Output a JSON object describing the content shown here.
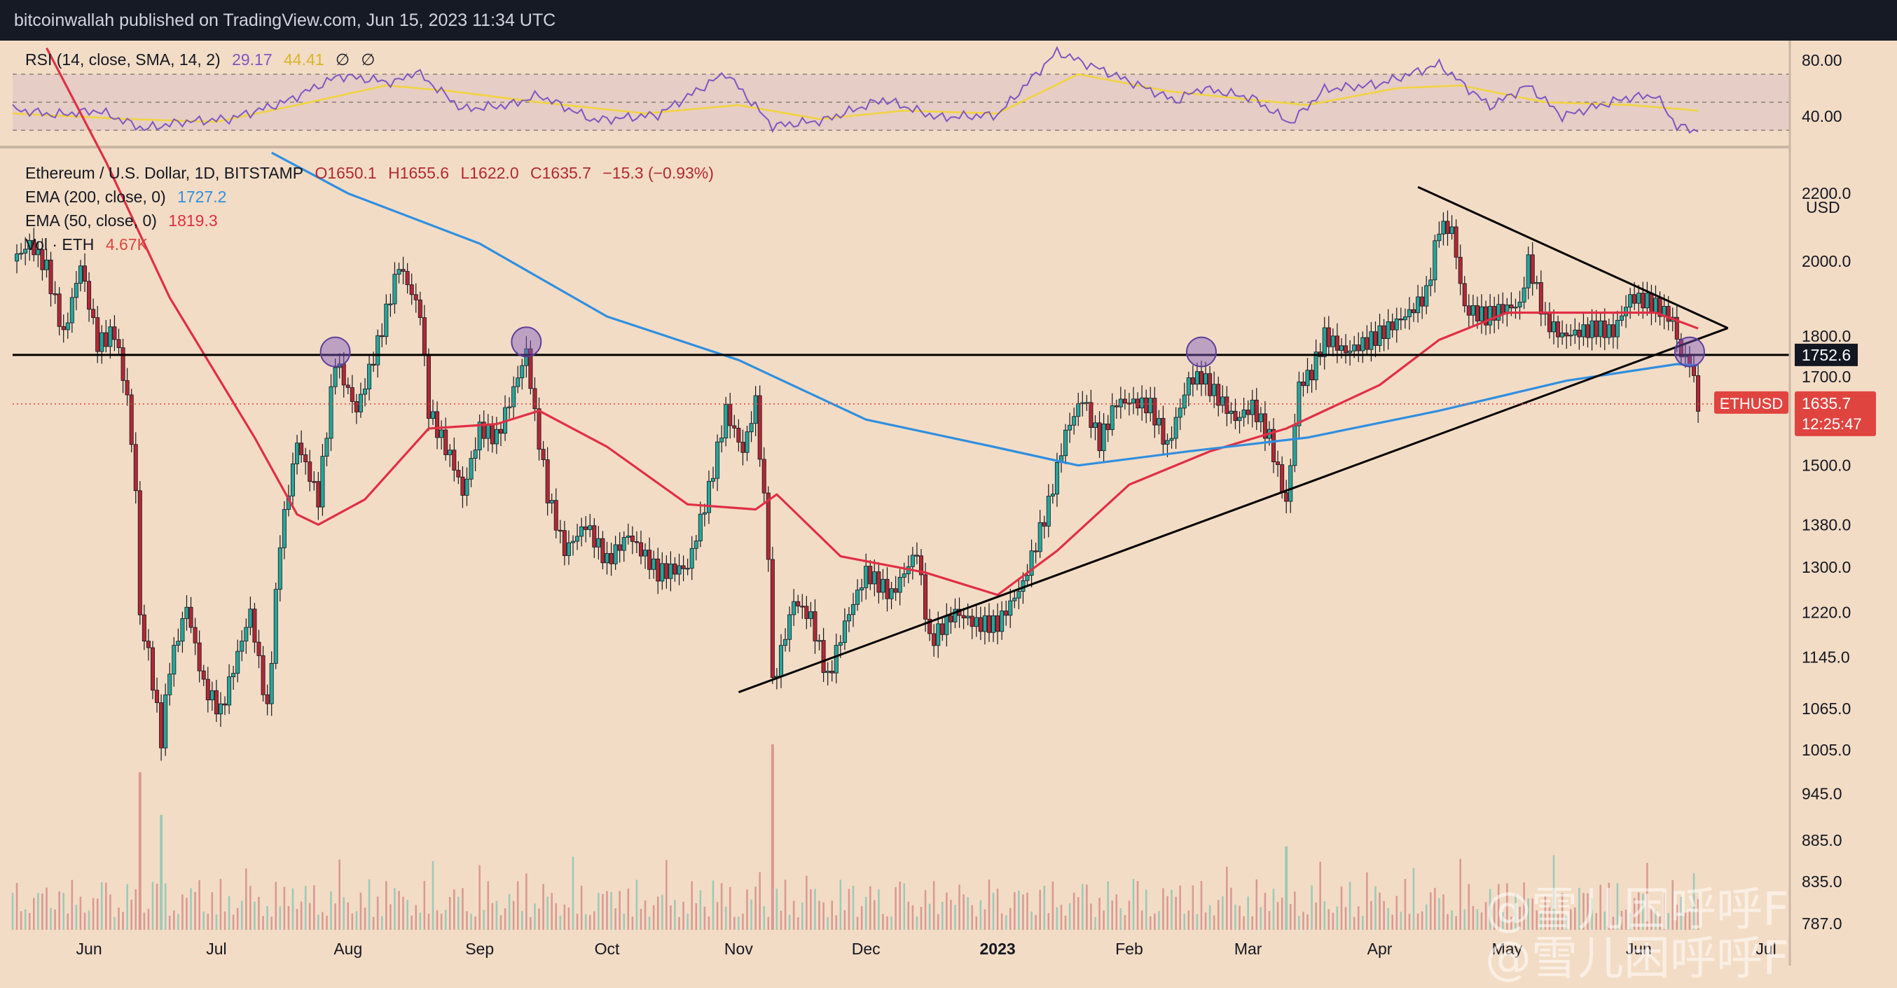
{
  "header": {
    "publisher": "bitcoinwallah published on TradingView.com, Jun 15, 2023 11:34 UTC"
  },
  "rsi_legend": {
    "name": "RSI (14, close, SMA, 14, 2)",
    "rsi_value": "29.17",
    "sma_value": "44.41",
    "icons": [
      "∅",
      "∅"
    ]
  },
  "main_legend": {
    "symbol": "Ethereum / U.S. Dollar, 1D, BITSTAMP",
    "open": "O1650.1",
    "high": "H1655.6",
    "low": "L1622.0",
    "close": "C1635.7",
    "change": "−15.3 (−0.93%)",
    "ema200_label": "EMA (200, close, 0)",
    "ema200_value": "1727.2",
    "ema50_label": "EMA (50, close, 0)",
    "ema50_value": "1819.3",
    "vol_label": "Vol · ETH",
    "vol_value": "4.67K"
  },
  "watermark": {
    "line1": "@雪儿困呼呼F",
    "line2": "@雪儿困呼呼F"
  },
  "colors": {
    "background": "#f3dcc5",
    "up": "#26a69a",
    "down": "#b22833",
    "ema200": "#2f8fe0",
    "ema50": "#e02f45",
    "rsi_line": "#7e57c2",
    "rsi_sma": "#f2d33d",
    "price_tag": "#e0443f"
  },
  "chart_data": {
    "type": "candlestick",
    "symbol": "ETHUSD",
    "price_axis": {
      "unit_label": "USD",
      "scale": "log",
      "range": [
        780,
        2330
      ],
      "ticks": [
        2200.0,
        2000.0,
        1800.0,
        1700.0,
        1500.0,
        1380.0,
        1300.0,
        1220.0,
        1145.0,
        1065.0,
        1005.0,
        945.0,
        885.0,
        835.0,
        787.0
      ],
      "tick_labels": [
        "2200.0",
        "2000.0",
        "1800.0",
        "1700.0",
        "1500.0",
        "1380.0",
        "1300.0",
        "1220.0",
        "1145.0",
        "1065.0",
        "1005.0",
        "945.0",
        "885.0",
        "835.0",
        "787.0"
      ]
    },
    "time_axis": {
      "range": [
        "2022-05-14",
        "2023-06-30"
      ],
      "ticks": [
        {
          "date": "2022-06-01",
          "label": "Jun",
          "bold": false
        },
        {
          "date": "2022-07-01",
          "label": "Jul",
          "bold": false
        },
        {
          "date": "2022-08-01",
          "label": "Aug",
          "bold": false
        },
        {
          "date": "2022-09-01",
          "label": "Sep",
          "bold": false
        },
        {
          "date": "2022-10-01",
          "label": "Oct",
          "bold": false
        },
        {
          "date": "2022-11-01",
          "label": "Nov",
          "bold": false
        },
        {
          "date": "2022-12-01",
          "label": "Dec",
          "bold": false
        },
        {
          "date": "2023-01-01",
          "label": "2023",
          "bold": true
        },
        {
          "date": "2023-02-01",
          "label": "Feb",
          "bold": false
        },
        {
          "date": "2023-03-01",
          "label": "Mar",
          "bold": false
        },
        {
          "date": "2023-04-01",
          "label": "Apr",
          "bold": false
        },
        {
          "date": "2023-05-01",
          "label": "May",
          "bold": false
        },
        {
          "date": "2023-06-01",
          "label": "Jun",
          "bold": false
        },
        {
          "date": "2023-07-01",
          "label": "Jul",
          "bold": false
        }
      ]
    },
    "close_path": [
      [
        "2022-05-14",
        2000
      ],
      [
        "2022-05-18",
        2050
      ],
      [
        "2022-05-22",
        1980
      ],
      [
        "2022-05-26",
        1800
      ],
      [
        "2022-05-30",
        1990
      ],
      [
        "2022-06-03",
        1780
      ],
      [
        "2022-06-07",
        1810
      ],
      [
        "2022-06-10",
        1650
      ],
      [
        "2022-06-12",
        1450
      ],
      [
        "2022-06-13",
        1210
      ],
      [
        "2022-06-15",
        1150
      ],
      [
        "2022-06-18",
        1020
      ],
      [
        "2022-06-20",
        1130
      ],
      [
        "2022-06-24",
        1230
      ],
      [
        "2022-06-28",
        1100
      ],
      [
        "2022-07-02",
        1060
      ],
      [
        "2022-07-06",
        1150
      ],
      [
        "2022-07-09",
        1220
      ],
      [
        "2022-07-13",
        1060
      ],
      [
        "2022-07-16",
        1350
      ],
      [
        "2022-07-20",
        1550
      ],
      [
        "2022-07-25",
        1430
      ],
      [
        "2022-07-29",
        1740
      ],
      [
        "2022-08-03",
        1620
      ],
      [
        "2022-08-08",
        1780
      ],
      [
        "2022-08-13",
        1990
      ],
      [
        "2022-08-18",
        1860
      ],
      [
        "2022-08-20",
        1620
      ],
      [
        "2022-08-26",
        1500
      ],
      [
        "2022-08-28",
        1440
      ],
      [
        "2022-09-01",
        1580
      ],
      [
        "2022-09-05",
        1560
      ],
      [
        "2022-09-08",
        1640
      ],
      [
        "2022-09-12",
        1760
      ],
      [
        "2022-09-14",
        1610
      ],
      [
        "2022-09-17",
        1440
      ],
      [
        "2022-09-21",
        1330
      ],
      [
        "2022-09-26",
        1380
      ],
      [
        "2022-10-01",
        1310
      ],
      [
        "2022-10-06",
        1360
      ],
      [
        "2022-10-13",
        1290
      ],
      [
        "2022-10-20",
        1300
      ],
      [
        "2022-10-25",
        1450
      ],
      [
        "2022-10-29",
        1620
      ],
      [
        "2022-11-02",
        1530
      ],
      [
        "2022-11-05",
        1640
      ],
      [
        "2022-11-08",
        1330
      ],
      [
        "2022-11-09",
        1100
      ],
      [
        "2022-11-14",
        1240
      ],
      [
        "2022-11-18",
        1210
      ],
      [
        "2022-11-22",
        1110
      ],
      [
        "2022-11-26",
        1200
      ],
      [
        "2022-12-01",
        1290
      ],
      [
        "2022-12-07",
        1250
      ],
      [
        "2022-12-13",
        1330
      ],
      [
        "2022-12-16",
        1170
      ],
      [
        "2022-12-22",
        1220
      ],
      [
        "2022-12-27",
        1200
      ],
      [
        "2023-01-01",
        1200
      ],
      [
        "2023-01-07",
        1270
      ],
      [
        "2023-01-13",
        1420
      ],
      [
        "2023-01-17",
        1570
      ],
      [
        "2023-01-21",
        1650
      ],
      [
        "2023-01-25",
        1550
      ],
      [
        "2023-01-29",
        1640
      ],
      [
        "2023-02-02",
        1640
      ],
      [
        "2023-02-06",
        1630
      ],
      [
        "2023-02-10",
        1540
      ],
      [
        "2023-02-15",
        1690
      ],
      [
        "2023-02-18",
        1700
      ],
      [
        "2023-02-22",
        1650
      ],
      [
        "2023-02-26",
        1600
      ],
      [
        "2023-03-02",
        1630
      ],
      [
        "2023-03-06",
        1560
      ],
      [
        "2023-03-10",
        1420
      ],
      [
        "2023-03-13",
        1680
      ],
      [
        "2023-03-16",
        1710
      ],
      [
        "2023-03-19",
        1800
      ],
      [
        "2023-03-24",
        1760
      ],
      [
        "2023-03-30",
        1790
      ],
      [
        "2023-04-03",
        1820
      ],
      [
        "2023-04-08",
        1860
      ],
      [
        "2023-04-12",
        1910
      ],
      [
        "2023-04-15",
        2100
      ],
      [
        "2023-04-18",
        2090
      ],
      [
        "2023-04-21",
        1870
      ],
      [
        "2023-04-26",
        1850
      ],
      [
        "2023-04-30",
        1870
      ],
      [
        "2023-05-04",
        1880
      ],
      [
        "2023-05-06",
        2000
      ],
      [
        "2023-05-10",
        1840
      ],
      [
        "2023-05-14",
        1800
      ],
      [
        "2023-05-18",
        1810
      ],
      [
        "2023-05-22",
        1820
      ],
      [
        "2023-05-26",
        1810
      ],
      [
        "2023-05-30",
        1900
      ],
      [
        "2023-06-03",
        1890
      ],
      [
        "2023-06-06",
        1870
      ],
      [
        "2023-06-09",
        1840
      ],
      [
        "2023-06-11",
        1750
      ],
      [
        "2023-06-13",
        1740
      ],
      [
        "2023-06-15",
        1636
      ]
    ],
    "ema50_path": [
      [
        "2022-05-22",
        2700
      ],
      [
        "2022-06-05",
        2300
      ],
      [
        "2022-06-20",
        1900
      ],
      [
        "2022-07-10",
        1560
      ],
      [
        "2022-07-20",
        1400
      ],
      [
        "2022-07-25",
        1380
      ],
      [
        "2022-08-05",
        1430
      ],
      [
        "2022-08-20",
        1580
      ],
      [
        "2022-09-05",
        1590
      ],
      [
        "2022-09-15",
        1620
      ],
      [
        "2022-10-01",
        1540
      ],
      [
        "2022-10-20",
        1420
      ],
      [
        "2022-11-05",
        1410
      ],
      [
        "2022-11-10",
        1440
      ],
      [
        "2022-11-25",
        1320
      ],
      [
        "2022-12-15",
        1290
      ],
      [
        "2023-01-01",
        1250
      ],
      [
        "2023-01-15",
        1330
      ],
      [
        "2023-02-01",
        1460
      ],
      [
        "2023-02-20",
        1530
      ],
      [
        "2023-03-10",
        1580
      ],
      [
        "2023-04-01",
        1680
      ],
      [
        "2023-04-15",
        1790
      ],
      [
        "2023-05-01",
        1860
      ],
      [
        "2023-05-20",
        1860
      ],
      [
        "2023-06-05",
        1860
      ],
      [
        "2023-06-15",
        1819
      ]
    ],
    "ema200_path": [
      [
        "2022-07-14",
        2330
      ],
      [
        "2022-08-01",
        2200
      ],
      [
        "2022-09-01",
        2050
      ],
      [
        "2022-10-01",
        1850
      ],
      [
        "2022-11-01",
        1740
      ],
      [
        "2022-12-01",
        1600
      ],
      [
        "2022-12-31",
        1540
      ],
      [
        "2023-01-20",
        1500
      ],
      [
        "2023-02-15",
        1530
      ],
      [
        "2023-03-15",
        1560
      ],
      [
        "2023-04-15",
        1620
      ],
      [
        "2023-05-15",
        1690
      ],
      [
        "2023-06-10",
        1730
      ],
      [
        "2023-06-15",
        1727
      ]
    ],
    "volume_spikes": [
      {
        "date": "2022-06-13",
        "color": "down",
        "height": 0.85
      },
      {
        "date": "2022-06-18",
        "color": "up",
        "height": 0.62
      },
      {
        "date": "2022-11-09",
        "color": "down",
        "height": 1.0
      },
      {
        "date": "2023-03-10",
        "color": "up",
        "height": 0.45
      }
    ],
    "annotations": {
      "horizontal_level": {
        "price": 1752.6,
        "label": "1752.6"
      },
      "current_price": {
        "price": 1635.7,
        "symbol_label": "ETHUSD",
        "price_label": "1635.7",
        "countdown": "12:25:47"
      },
      "support_line": {
        "from": [
          "2022-11-01",
          1090
        ],
        "to": [
          "2023-06-22",
          1820
        ]
      },
      "resistance_line": {
        "from": [
          "2023-04-10",
          2220
        ],
        "to": [
          "2023-06-22",
          1820
        ]
      },
      "circles": [
        {
          "date": "2022-07-29",
          "price": 1760
        },
        {
          "date": "2022-09-12",
          "price": 1785
        },
        {
          "date": "2023-02-18",
          "price": 1760
        },
        {
          "date": "2023-06-13",
          "price": 1760
        }
      ]
    },
    "rsi": {
      "ticks": [
        80,
        40
      ],
      "tick_labels": [
        "80.00",
        "40.00"
      ],
      "band": [
        30,
        70
      ],
      "path": [
        [
          "2022-05-14",
          45
        ],
        [
          "2022-05-24",
          41
        ],
        [
          "2022-06-03",
          44
        ],
        [
          "2022-06-14",
          31
        ],
        [
          "2022-06-23",
          36
        ],
        [
          "2022-07-04",
          38
        ],
        [
          "2022-07-17",
          50
        ],
        [
          "2022-07-30",
          69
        ],
        [
          "2022-08-12",
          64
        ],
        [
          "2022-08-17",
          72
        ],
        [
          "2022-08-28",
          45
        ],
        [
          "2022-09-08",
          48
        ],
        [
          "2022-09-15",
          55
        ],
        [
          "2022-09-28",
          37
        ],
        [
          "2022-10-13",
          41
        ],
        [
          "2022-10-29",
          71
        ],
        [
          "2022-11-09",
          33
        ],
        [
          "2022-11-21",
          37
        ],
        [
          "2022-12-05",
          52
        ],
        [
          "2022-12-18",
          39
        ],
        [
          "2023-01-01",
          41
        ],
        [
          "2023-01-15",
          86
        ],
        [
          "2023-01-28",
          70
        ],
        [
          "2023-02-12",
          51
        ],
        [
          "2023-02-18",
          60
        ],
        [
          "2023-03-02",
          53
        ],
        [
          "2023-03-11",
          35
        ],
        [
          "2023-03-19",
          59
        ],
        [
          "2023-04-01",
          63
        ],
        [
          "2023-04-15",
          77
        ],
        [
          "2023-04-27",
          47
        ],
        [
          "2023-05-06",
          62
        ],
        [
          "2023-05-14",
          40
        ],
        [
          "2023-05-29",
          53
        ],
        [
          "2023-06-05",
          55
        ],
        [
          "2023-06-10",
          33
        ],
        [
          "2023-06-15",
          29
        ]
      ],
      "sma_path": [
        [
          "2022-05-14",
          42
        ],
        [
          "2022-06-10",
          38
        ],
        [
          "2022-07-01",
          36
        ],
        [
          "2022-07-20",
          48
        ],
        [
          "2022-08-10",
          62
        ],
        [
          "2022-08-25",
          58
        ],
        [
          "2022-09-15",
          50
        ],
        [
          "2022-10-10",
          42
        ],
        [
          "2022-11-01",
          48
        ],
        [
          "2022-11-20",
          38
        ],
        [
          "2022-12-10",
          44
        ],
        [
          "2023-01-01",
          42
        ],
        [
          "2023-01-20",
          70
        ],
        [
          "2023-02-10",
          58
        ],
        [
          "2023-03-01",
          52
        ],
        [
          "2023-03-15",
          48
        ],
        [
          "2023-04-05",
          60
        ],
        [
          "2023-04-20",
          62
        ],
        [
          "2023-05-10",
          50
        ],
        [
          "2023-05-30",
          48
        ],
        [
          "2023-06-15",
          44
        ]
      ]
    }
  }
}
